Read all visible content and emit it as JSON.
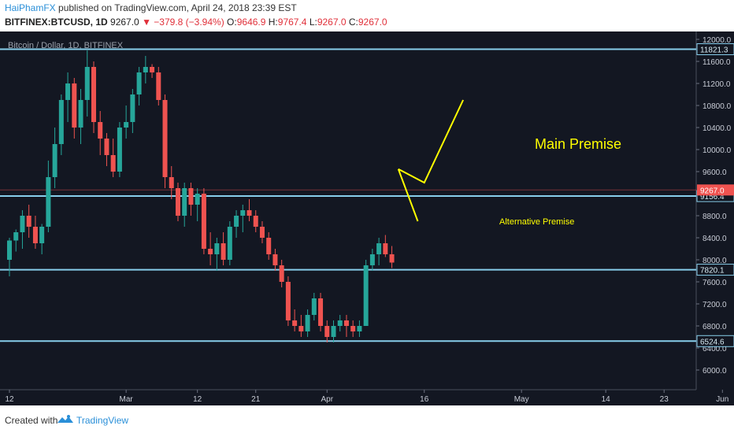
{
  "header": {
    "author": "HaiPhamFX",
    "published": " published on TradingView.com, April 24, 2018 23:39 EST",
    "symbol": "BITFINEX:BTCUSD, 1D",
    "last": "9267.0",
    "change": "−379.8 (−3.94%)",
    "o_label": "O:",
    "o_val": "9646.9",
    "h_label": "H:",
    "h_val": "9767.4",
    "l_label": "L:",
    "l_val": "9267.0",
    "c_label": "C:",
    "c_val": "9267.0",
    "down_arrow": "▼"
  },
  "footer": {
    "created": "Created with",
    "brand": "TradingView",
    "logo_icon": "tradingview-logo-icon"
  },
  "colors": {
    "background": "#131722",
    "up": "#26a69a",
    "down": "#ef5350",
    "level": "#87ceeb",
    "annotation": "#ffff00",
    "price_label": "#ef5350"
  },
  "chart_data": {
    "type": "candlestick",
    "title": "Bitcoin / Dollar, 1D, BITFINEX",
    "y_ticks": [
      12000,
      11600,
      11200,
      10800,
      10400,
      10000,
      9600,
      9200,
      8800,
      8400,
      8000,
      7600,
      7200,
      6800,
      6400,
      6000
    ],
    "y_tick_labels": [
      "12000.0",
      "11600.0",
      "11200.0",
      "10800.0",
      "10400.0",
      "10000.0",
      "9600.0",
      "9200.0",
      "8800.0",
      "8400.0",
      "8000.0",
      "7600.0",
      "7200.0",
      "6800.0",
      "6400.0",
      "6000.0"
    ],
    "x_ticks": [
      {
        "label": "12",
        "day": 0
      },
      {
        "label": "Mar",
        "day": 18
      },
      {
        "label": "12",
        "day": 29
      },
      {
        "label": "21",
        "day": 38
      },
      {
        "label": "Apr",
        "day": 49
      },
      {
        "label": "16",
        "day": 64
      },
      {
        "label": "May",
        "day": 79
      },
      {
        "label": "14",
        "day": 92
      },
      {
        "label": "23",
        "day": 101
      },
      {
        "label": "Jun",
        "day": 110
      }
    ],
    "levels": [
      {
        "price": 11821.3,
        "label": "11821.3"
      },
      {
        "price": 9156.4,
        "label": "9156.4"
      },
      {
        "price": 7820.1,
        "label": "7820.1"
      },
      {
        "price": 6524.6,
        "label": "6524.6"
      }
    ],
    "current_price": {
      "price": 9267.0,
      "label": "9267.0"
    },
    "annotations": [
      {
        "text": "Main Premise",
        "size": "large"
      },
      {
        "text": "Alternative Premise",
        "size": "small"
      }
    ],
    "premise_paths": {
      "main": [
        [
          60,
          9646
        ],
        [
          64,
          9400
        ],
        [
          70,
          10900
        ]
      ],
      "alternative": [
        [
          60,
          9646
        ],
        [
          63,
          8700
        ]
      ]
    },
    "candles": [
      [
        8000,
        8400,
        7700,
        8350
      ],
      [
        8350,
        8550,
        8150,
        8500
      ],
      [
        8500,
        8900,
        8200,
        8800
      ],
      [
        8800,
        9000,
        8400,
        8600
      ],
      [
        8600,
        8800,
        8200,
        8300
      ],
      [
        8300,
        8650,
        8100,
        8600
      ],
      [
        8600,
        9800,
        8500,
        9500
      ],
      [
        9500,
        10400,
        9300,
        10100
      ],
      [
        10100,
        11000,
        9900,
        10900
      ],
      [
        10900,
        11400,
        10500,
        11200
      ],
      [
        11200,
        11300,
        10200,
        10400
      ],
      [
        10400,
        11100,
        10100,
        10900
      ],
      [
        10900,
        11800,
        10600,
        11500
      ],
      [
        11500,
        11600,
        10300,
        10500
      ],
      [
        10500,
        10700,
        9900,
        10200
      ],
      [
        10200,
        10300,
        9700,
        9900
      ],
      [
        9900,
        10200,
        9500,
        9600
      ],
      [
        9600,
        10500,
        9500,
        10400
      ],
      [
        10400,
        10800,
        10200,
        10500
      ],
      [
        10500,
        11100,
        10300,
        11000
      ],
      [
        11000,
        11500,
        10800,
        11400
      ],
      [
        11400,
        11700,
        11200,
        11500
      ],
      [
        11500,
        11550,
        11300,
        11400
      ],
      [
        11400,
        11500,
        10800,
        10900
      ],
      [
        10900,
        11000,
        9300,
        9500
      ],
      [
        9500,
        9700,
        9100,
        9300
      ],
      [
        9300,
        9400,
        8700,
        8800
      ],
      [
        8800,
        9400,
        8600,
        9300
      ],
      [
        9300,
        9400,
        8800,
        9000
      ],
      [
        9000,
        9300,
        8700,
        9200
      ],
      [
        9200,
        9300,
        8100,
        8200
      ],
      [
        8200,
        8500,
        7900,
        8100
      ],
      [
        8100,
        8400,
        7800,
        8300
      ],
      [
        8300,
        8500,
        7900,
        8000
      ],
      [
        8000,
        8700,
        7900,
        8600
      ],
      [
        8600,
        8900,
        8400,
        8800
      ],
      [
        8800,
        9000,
        8500,
        8900
      ],
      [
        8900,
        9100,
        8700,
        8800
      ],
      [
        8800,
        8900,
        8500,
        8600
      ],
      [
        8600,
        8700,
        8300,
        8400
      ],
      [
        8400,
        8500,
        8000,
        8100
      ],
      [
        8100,
        8200,
        7800,
        7900
      ],
      [
        7900,
        8000,
        7500,
        7600
      ],
      [
        7600,
        7700,
        6800,
        6900
      ],
      [
        6900,
        7100,
        6700,
        6800
      ],
      [
        6800,
        7000,
        6600,
        6700
      ],
      [
        6700,
        7100,
        6600,
        7000
      ],
      [
        7000,
        7400,
        6900,
        7300
      ],
      [
        7300,
        7400,
        6700,
        6800
      ],
      [
        6800,
        6900,
        6500,
        6600
      ],
      [
        6600,
        6900,
        6500,
        6800
      ],
      [
        6800,
        7000,
        6700,
        6900
      ],
      [
        6900,
        7000,
        6600,
        6800
      ],
      [
        6800,
        6900,
        6600,
        6700
      ],
      [
        6700,
        6900,
        6600,
        6800
      ],
      [
        6800,
        8000,
        6800,
        7900
      ],
      [
        7900,
        8200,
        7800,
        8100
      ],
      [
        8100,
        8400,
        7900,
        8300
      ],
      [
        8300,
        8450,
        8050,
        8100
      ],
      [
        8100,
        8250,
        7850,
        7950
      ]
    ]
  }
}
